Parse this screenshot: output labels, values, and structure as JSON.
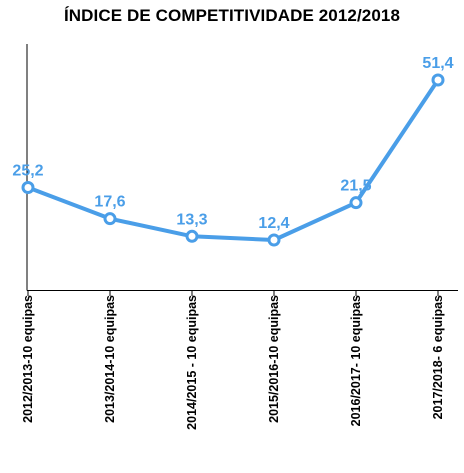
{
  "chart_data": {
    "type": "line",
    "title": "ÍNDICE DE COMPETITIVIDADE 2012/2018",
    "categories": [
      "2012/2013-10 equipas",
      "2013/2014-10 equipas",
      "2014/2015 - 10 equipas",
      "2015/2016-10 equipas",
      "2016/2017- 10 equipas",
      "2017/2018- 6 equipas"
    ],
    "series": [
      {
        "values": [
          25.2,
          17.6,
          13.3,
          12.4,
          21.5,
          51.4
        ],
        "labels": [
          "25,2",
          "17,6",
          "13,3",
          "12,4",
          "21,5",
          "51,4"
        ]
      }
    ],
    "xlabel": "",
    "ylabel": "",
    "ylim": [
      0,
      55
    ],
    "grid": false,
    "legend": "none",
    "colors": {
      "line": "#4a9ee8",
      "marker_fill": "#ffffff",
      "data_label": "#4a9ee8",
      "axis": "#000000"
    }
  }
}
